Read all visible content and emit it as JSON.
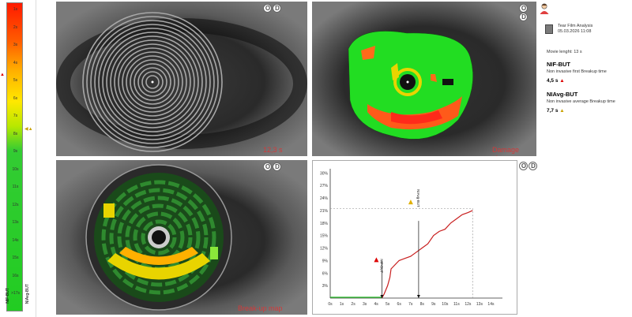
{
  "scale": {
    "ticks": [
      "1s",
      "2s",
      "3s",
      "4s",
      "5s",
      "6s",
      "7s",
      "8s",
      "9s",
      "10s",
      "11s",
      "12s",
      "13s",
      "14s",
      "15s",
      "16s",
      ">17s"
    ],
    "label_nif": "NIF-BUT",
    "label_niavg": "NIAvg-BUT"
  },
  "panels": {
    "eye_label": [
      "O",
      "D"
    ],
    "placido_caption": "12,3 s",
    "damage_caption": "Damage stream",
    "breakup_caption": "Break-up map"
  },
  "info": {
    "file_title": "Tear Film Analysis",
    "file_date": "05.03.2026 11:08",
    "movie_length": "Movie lenght: 13 s",
    "nif_heading": "NIF-BUT",
    "nif_desc": "Non invasive first Breakup time",
    "nif_value": "4,5 s",
    "niavg_heading": "NIAvg-BUT",
    "niavg_desc": "Non invasive average Breakup time",
    "niavg_value": "7,7 s"
  },
  "chart_data": {
    "type": "line",
    "x_ticks": [
      "0s",
      "1s",
      "2s",
      "3s",
      "4s",
      "5s",
      "6s",
      "7s",
      "8s",
      "9s",
      "10s",
      "11s",
      "12s",
      "13s",
      "14s"
    ],
    "y_ticks": [
      "3%",
      "6%",
      "9%",
      "12%",
      "15%",
      "18%",
      "21%",
      "24%",
      "27%",
      "30%"
    ],
    "xlim": [
      0,
      15
    ],
    "ylim": [
      0,
      31
    ],
    "series": [
      {
        "points": [
          [
            0,
            0
          ],
          [
            4.5,
            0
          ],
          [
            4.7,
            1
          ],
          [
            5,
            3
          ],
          [
            5.2,
            5
          ],
          [
            5.3,
            7
          ],
          [
            6,
            9
          ],
          [
            6.5,
            9.5
          ],
          [
            7,
            10
          ],
          [
            7.5,
            11
          ],
          [
            8,
            12
          ],
          [
            8.5,
            13
          ],
          [
            9,
            15
          ],
          [
            9.5,
            16
          ],
          [
            10,
            16.5
          ],
          [
            10.5,
            18
          ],
          [
            11,
            19
          ],
          [
            11.5,
            20
          ],
          [
            12,
            20.5
          ],
          [
            12.4,
            21
          ]
        ]
      }
    ],
    "markers": [
      {
        "label": "NIF-BUT",
        "x": 4.5,
        "y": 9
      },
      {
        "label": "NIAvg-BUT",
        "x": 7.7,
        "y": 18.5
      }
    ],
    "ref_value": 21.5,
    "ref_x": 12.4
  }
}
